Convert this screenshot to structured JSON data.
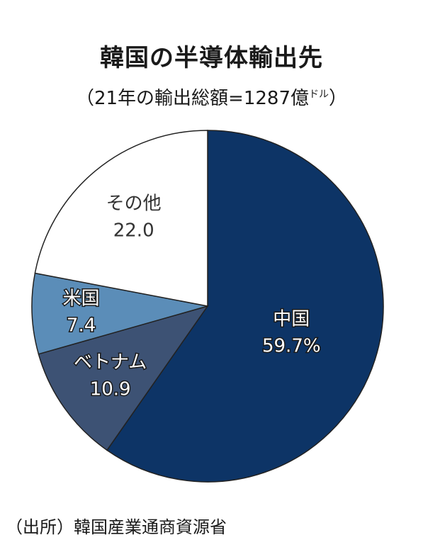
{
  "title": "韓国の半導体輸出先",
  "subtitle_main": "（21年の輸出総額=1287億",
  "subtitle_unit": "ドル",
  "subtitle_close": "）",
  "source": "（出所）韓国産業通商資源省",
  "chart_data": {
    "type": "pie",
    "title": "韓国の半導体輸出先",
    "subtitle": "（21年の輸出総額=1287億ドル）",
    "unit": "%",
    "slices": [
      {
        "label": "中国",
        "value": 59.7,
        "value_text": "59.7%",
        "color": "#0d3466",
        "text_color": "#ffffff"
      },
      {
        "label": "ベトナム",
        "value": 10.9,
        "value_text": "10.9",
        "color": "#3d5274",
        "text_color": "#ffffff"
      },
      {
        "label": "米国",
        "value": 7.4,
        "value_text": "7.4",
        "color": "#5b8db8",
        "text_color": "#ffffff"
      },
      {
        "label": "その他",
        "value": 22.0,
        "value_text": "22.0",
        "color": "#ffffff",
        "text_color": "#333333"
      }
    ],
    "start_angle_deg": 0,
    "direction": "clockwise"
  }
}
